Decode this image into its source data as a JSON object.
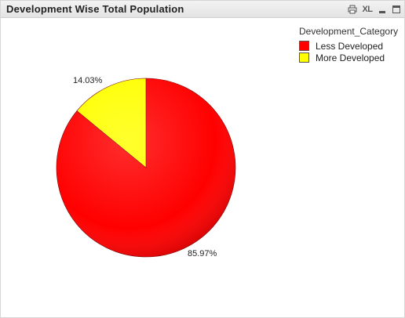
{
  "window": {
    "title": "Development Wise Total Population",
    "tools": [
      {
        "name": "print-icon",
        "label": ""
      },
      {
        "name": "send-to-excel-icon",
        "label": "XL"
      },
      {
        "name": "minimize-icon",
        "label": ""
      },
      {
        "name": "maximize-icon",
        "label": ""
      }
    ]
  },
  "chart_data": {
    "type": "pie",
    "title": "Development Wise Total Population",
    "legend_title": "Development_Category",
    "legend_position": "top-right",
    "slices": [
      {
        "name": "Less Developed",
        "value": 85.97,
        "label": "85.97%",
        "color": "#ff0000"
      },
      {
        "name": "More Developed",
        "value": 14.03,
        "label": "14.03%",
        "color": "#ffff00"
      }
    ]
  }
}
